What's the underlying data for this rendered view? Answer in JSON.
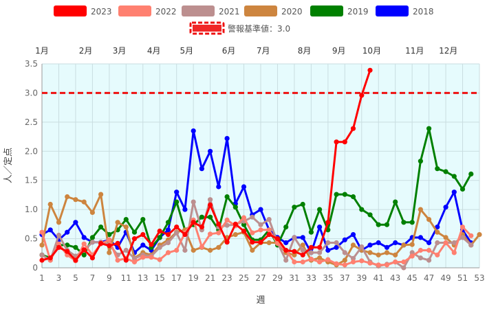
{
  "chart_data": {
    "type": "line",
    "xlabel": "週",
    "ylabel": "人／定点",
    "ylim": [
      0,
      3.5
    ],
    "xlim": [
      1,
      53
    ],
    "y_ticks": [
      "0",
      "0.5",
      "1.0",
      "1.5",
      "2.0",
      "2.5",
      "3.0",
      "3.5"
    ],
    "x_ticks": [
      "1",
      "3",
      "5",
      "7",
      "9",
      "11",
      "13",
      "15",
      "17",
      "19",
      "21",
      "23",
      "25",
      "27",
      "29",
      "31",
      "33",
      "35",
      "37",
      "39",
      "41",
      "43",
      "45",
      "47",
      "49",
      "51",
      "53"
    ],
    "x_tick_values": [
      1,
      3,
      5,
      7,
      9,
      11,
      13,
      15,
      17,
      19,
      21,
      23,
      25,
      27,
      29,
      31,
      33,
      35,
      37,
      39,
      41,
      43,
      45,
      47,
      49,
      51,
      53
    ],
    "months": [
      {
        "label": "1月",
        "week": 1
      },
      {
        "label": "2月",
        "week": 6.2
      },
      {
        "label": "3月",
        "week": 10.2
      },
      {
        "label": "4月",
        "week": 14.3
      },
      {
        "label": "5月",
        "week": 18.2
      },
      {
        "label": "6月",
        "week": 23.2
      },
      {
        "label": "7月",
        "week": 27.3
      },
      {
        "label": "8月",
        "week": 32.2
      },
      {
        "label": "9月",
        "week": 36.3
      },
      {
        "label": "10月",
        "week": 40.2
      },
      {
        "label": "11月",
        "week": 45.3
      },
      {
        "label": "12月",
        "week": 49.3
      }
    ],
    "threshold": {
      "name": "警報基準値：3.0",
      "value": 3.0,
      "color": "#ee1111"
    },
    "grid": true,
    "legend_position": "top",
    "series": [
      {
        "name": "2023",
        "color": "#ff0000",
        "values": [
          0.13,
          0.17,
          0.35,
          0.28,
          0.13,
          0.31,
          0.17,
          0.42,
          0.38,
          0.42,
          0.13,
          0.5,
          0.57,
          0.4,
          0.63,
          0.57,
          0.7,
          0.57,
          0.78,
          0.7,
          1.08,
          0.75,
          0.44,
          0.75,
          0.63,
          0.44,
          0.44,
          0.57,
          0.5,
          0.3,
          0.28,
          0.22,
          0.35,
          0.35,
          0.78,
          2.16,
          2.16,
          2.39,
          2.96,
          3.39
        ]
      },
      {
        "name": "2022",
        "color": "#ff8070",
        "values": [
          0.61,
          0.13,
          0.41,
          0.22,
          0.12,
          0.41,
          0.22,
          0.41,
          0.48,
          0.13,
          0.16,
          0.1,
          0.18,
          0.18,
          0.14,
          0.26,
          0.3,
          0.6,
          0.82,
          0.36,
          0.58,
          0.6,
          0.82,
          0.72,
          0.86,
          0.6,
          0.65,
          0.65,
          0.42,
          0.3,
          0.1,
          0.1,
          0.15,
          0.1,
          0.14,
          0.07,
          0.05,
          0.1,
          0.12,
          0.08,
          0.05,
          0.05,
          0.1,
          0.1,
          0.2,
          0.3,
          0.3,
          0.22,
          0.43,
          0.26,
          0.7,
          0.55
        ]
      },
      {
        "name": "2021",
        "color": "#bc8f8f",
        "values": [
          0.22,
          0.13,
          0.56,
          0.3,
          0.2,
          0.3,
          0.44,
          0.44,
          0.4,
          0.22,
          0.3,
          0.16,
          0.22,
          0.2,
          0.35,
          0.43,
          0.6,
          0.3,
          1.13,
          0.65,
          1.17,
          0.7,
          0.73,
          0.74,
          0.8,
          0.87,
          0.74,
          0.83,
          0.43,
          0.13,
          0.52,
          0.3,
          0.26,
          0.26,
          0.43,
          0.43,
          0.26,
          0.16,
          0.36,
          0.1,
          0.03,
          0.06,
          0.1,
          0.0,
          0.26,
          0.17,
          0.13,
          0.43,
          0.43,
          0.43,
          0.52,
          0.39
        ]
      },
      {
        "name": "2020",
        "color": "#cd853f",
        "values": [
          0.39,
          1.09,
          0.78,
          1.22,
          1.17,
          1.13,
          0.95,
          1.26,
          0.26,
          0.78,
          0.7,
          0.17,
          0.26,
          0.22,
          0.39,
          0.48,
          0.61,
          0.65,
          0.3,
          0.35,
          0.3,
          0.35,
          0.52,
          0.57,
          0.61,
          0.3,
          0.43,
          0.43,
          0.43,
          0.26,
          0.22,
          0.39,
          0.13,
          0.17,
          0.1,
          0.05,
          0.13,
          0.39,
          0.3,
          0.26,
          0.22,
          0.26,
          0.22,
          0.39,
          0.4,
          1.0,
          0.83,
          0.61,
          0.52,
          0.39,
          0.57,
          0.39,
          0.57
        ]
      },
      {
        "name": "2019",
        "color": "#008000",
        "values": [
          0.22,
          0.17,
          0.39,
          0.39,
          0.35,
          0.22,
          0.52,
          0.7,
          0.57,
          0.65,
          0.83,
          0.61,
          0.83,
          0.35,
          0.52,
          0.78,
          1.13,
          0.65,
          0.74,
          0.87,
          0.87,
          0.65,
          1.22,
          1.04,
          0.74,
          0.48,
          0.48,
          0.65,
          0.39,
          0.7,
          1.04,
          1.09,
          0.61,
          1.0,
          0.65,
          1.26,
          1.26,
          1.22,
          1.0,
          0.91,
          0.74,
          0.74,
          1.13,
          0.78,
          0.78,
          1.83,
          2.39,
          1.7,
          1.65,
          1.57,
          1.35,
          1.61
        ]
      },
      {
        "name": "2018",
        "color": "#0000ff",
        "values": [
          0.57,
          0.65,
          0.48,
          0.61,
          0.78,
          0.52,
          0.44,
          0.44,
          0.48,
          0.35,
          0.61,
          0.26,
          0.39,
          0.3,
          0.52,
          0.65,
          1.3,
          1.0,
          2.35,
          1.7,
          2.0,
          1.39,
          2.22,
          1.1,
          1.39,
          0.91,
          1.0,
          0.65,
          0.52,
          0.43,
          0.52,
          0.52,
          0.26,
          0.7,
          0.3,
          0.35,
          0.48,
          0.57,
          0.3,
          0.39,
          0.43,
          0.35,
          0.43,
          0.39,
          0.52,
          0.52,
          0.43,
          0.7,
          1.04,
          1.3,
          0.65,
          0.43
        ]
      }
    ]
  }
}
